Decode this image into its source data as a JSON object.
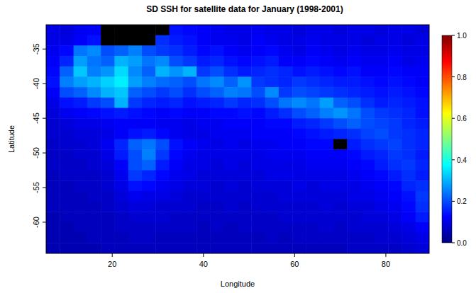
{
  "chart_data": {
    "type": "heatmap",
    "title": "SD SSH for satellite data for January (1998-2001)",
    "x_label": "Longitude",
    "y_label": "Latitude",
    "xlim": [
      5.5,
      89.5
    ],
    "ylim": [
      -64.5,
      -31.5
    ],
    "xticks": [
      20,
      40,
      60,
      80
    ],
    "yticks": [
      -60,
      -55,
      -50,
      -45,
      -40,
      -35
    ],
    "x": [
      7,
      10,
      13,
      16,
      19,
      22,
      25,
      28,
      31,
      34,
      37,
      40,
      43,
      46,
      49,
      52,
      55,
      58,
      61,
      64,
      67,
      70,
      73,
      76,
      79,
      82,
      85,
      88
    ],
    "y": [
      -32.25,
      -33.75,
      -35.25,
      -36.75,
      -38.25,
      -39.75,
      -41.25,
      -42.75,
      -44.25,
      -45.75,
      -47.25,
      -48.75,
      -50.25,
      -51.75,
      -53.25,
      -54.75,
      -56.25,
      -57.75,
      -59.25,
      -60.75,
      -62.25,
      -63.75
    ],
    "values": [
      [
        0.1,
        0.09,
        0.11,
        0.12,
        null,
        null,
        null,
        null,
        null,
        0.14,
        0.13,
        0.12,
        0.11,
        0.1,
        0.1,
        0.11,
        0.1,
        0.1,
        0.09,
        0.1,
        0.1,
        0.09,
        0.1,
        0.1,
        0.09,
        0.1,
        0.1,
        0.09
      ],
      [
        0.1,
        0.1,
        0.12,
        0.14,
        null,
        null,
        null,
        null,
        0.17,
        0.15,
        0.14,
        0.12,
        0.11,
        0.11,
        0.1,
        0.12,
        0.11,
        0.1,
        0.1,
        0.11,
        0.1,
        0.1,
        0.1,
        0.09,
        0.1,
        0.1,
        0.09,
        0.1
      ],
      [
        0.11,
        0.13,
        0.24,
        0.26,
        0.2,
        0.22,
        0.25,
        0.2,
        0.18,
        0.17,
        0.15,
        0.13,
        0.14,
        0.12,
        0.11,
        0.12,
        0.13,
        0.11,
        0.1,
        0.12,
        0.11,
        0.1,
        0.11,
        0.1,
        0.1,
        0.11,
        0.1,
        0.1
      ],
      [
        0.12,
        0.16,
        0.28,
        0.24,
        0.22,
        0.3,
        0.28,
        0.24,
        0.26,
        0.2,
        0.18,
        0.15,
        0.16,
        0.14,
        0.13,
        0.14,
        0.15,
        0.12,
        0.12,
        0.13,
        0.12,
        0.11,
        0.12,
        0.11,
        0.11,
        0.12,
        0.1,
        0.11
      ],
      [
        0.13,
        0.22,
        0.32,
        0.25,
        0.27,
        0.34,
        0.26,
        0.22,
        0.3,
        0.27,
        0.3,
        0.18,
        0.2,
        0.17,
        0.15,
        0.16,
        0.17,
        0.16,
        0.14,
        0.15,
        0.14,
        0.13,
        0.14,
        0.12,
        0.12,
        0.13,
        0.12,
        0.12
      ],
      [
        0.14,
        0.25,
        0.28,
        0.3,
        0.33,
        0.36,
        0.28,
        0.25,
        0.23,
        0.22,
        0.2,
        0.24,
        0.26,
        0.22,
        0.27,
        0.18,
        0.17,
        0.16,
        0.18,
        0.17,
        0.16,
        0.15,
        0.15,
        0.14,
        0.13,
        0.14,
        0.13,
        0.12
      ],
      [
        0.12,
        0.2,
        0.22,
        0.26,
        0.3,
        0.32,
        0.22,
        0.2,
        0.18,
        0.2,
        0.17,
        0.2,
        0.22,
        0.25,
        0.24,
        0.2,
        0.26,
        0.18,
        0.2,
        0.19,
        0.18,
        0.17,
        0.16,
        0.15,
        0.14,
        0.15,
        0.14,
        0.13
      ],
      [
        0.1,
        0.14,
        0.15,
        0.18,
        0.2,
        0.3,
        0.18,
        0.16,
        0.15,
        0.16,
        0.14,
        0.15,
        0.16,
        0.18,
        0.16,
        0.17,
        0.2,
        0.24,
        0.26,
        0.24,
        0.28,
        0.22,
        0.2,
        0.17,
        0.15,
        0.16,
        0.15,
        0.14
      ],
      [
        0.09,
        0.11,
        0.12,
        0.13,
        0.14,
        0.15,
        0.14,
        0.13,
        0.12,
        0.13,
        0.12,
        0.12,
        0.13,
        0.13,
        0.14,
        0.13,
        0.15,
        0.17,
        0.2,
        0.22,
        0.25,
        0.27,
        0.24,
        0.2,
        0.18,
        0.17,
        0.16,
        0.14
      ],
      [
        0.08,
        0.09,
        0.1,
        0.1,
        0.11,
        0.12,
        0.12,
        0.12,
        0.11,
        0.11,
        0.1,
        0.11,
        0.11,
        0.12,
        0.12,
        0.12,
        0.13,
        0.13,
        0.15,
        0.16,
        0.18,
        0.2,
        0.22,
        0.2,
        0.19,
        0.18,
        0.16,
        0.15
      ],
      [
        0.08,
        0.08,
        0.09,
        0.09,
        0.1,
        0.12,
        0.14,
        0.15,
        0.13,
        0.11,
        0.1,
        0.1,
        0.11,
        0.11,
        0.11,
        0.12,
        0.12,
        0.12,
        0.13,
        0.14,
        0.15,
        0.16,
        0.17,
        0.19,
        0.2,
        0.18,
        0.17,
        0.16
      ],
      [
        0.07,
        0.08,
        0.08,
        0.09,
        0.11,
        0.16,
        0.22,
        0.24,
        0.2,
        0.14,
        0.12,
        0.11,
        0.1,
        0.11,
        0.1,
        0.11,
        0.11,
        0.12,
        0.12,
        0.13,
        0.13,
        null,
        0.15,
        0.17,
        0.18,
        0.19,
        0.17,
        0.16
      ],
      [
        0.07,
        0.07,
        0.08,
        0.08,
        0.1,
        0.15,
        0.2,
        0.25,
        0.18,
        0.13,
        0.11,
        0.1,
        0.1,
        0.1,
        0.1,
        0.1,
        0.11,
        0.11,
        0.11,
        0.12,
        0.12,
        0.12,
        0.13,
        0.15,
        0.16,
        0.18,
        0.17,
        0.15
      ],
      [
        0.07,
        0.07,
        0.07,
        0.08,
        0.09,
        0.12,
        0.2,
        0.22,
        0.15,
        0.12,
        0.1,
        0.1,
        0.09,
        0.1,
        0.09,
        0.1,
        0.1,
        0.1,
        0.1,
        0.11,
        0.11,
        0.11,
        0.12,
        0.13,
        0.15,
        0.17,
        0.18,
        0.16
      ],
      [
        0.06,
        0.07,
        0.07,
        0.07,
        0.08,
        0.11,
        0.18,
        0.16,
        0.13,
        0.11,
        0.1,
        0.09,
        0.09,
        0.09,
        0.09,
        0.09,
        0.1,
        0.1,
        0.1,
        0.1,
        0.1,
        0.1,
        0.11,
        0.12,
        0.13,
        0.15,
        0.17,
        0.15
      ],
      [
        0.06,
        0.06,
        0.07,
        0.07,
        0.08,
        0.1,
        0.14,
        0.13,
        0.11,
        0.1,
        0.09,
        0.09,
        0.08,
        0.09,
        0.08,
        0.09,
        0.09,
        0.09,
        0.1,
        0.09,
        0.1,
        0.1,
        0.1,
        0.11,
        0.12,
        0.13,
        0.16,
        0.17
      ],
      [
        0.06,
        0.06,
        0.06,
        0.07,
        0.07,
        0.09,
        0.11,
        0.1,
        0.1,
        0.09,
        0.08,
        0.08,
        0.08,
        0.08,
        0.08,
        0.08,
        0.08,
        0.09,
        0.09,
        0.09,
        0.09,
        0.09,
        0.1,
        0.1,
        0.11,
        0.12,
        0.14,
        0.18
      ],
      [
        0.06,
        0.06,
        0.06,
        0.06,
        0.07,
        0.08,
        0.09,
        0.09,
        0.08,
        0.08,
        0.08,
        0.07,
        0.07,
        0.08,
        0.07,
        0.08,
        0.08,
        0.08,
        0.08,
        0.08,
        0.09,
        0.08,
        0.09,
        0.09,
        0.1,
        0.11,
        0.13,
        0.17
      ],
      [
        0.05,
        0.06,
        0.06,
        0.06,
        0.06,
        0.07,
        0.08,
        0.08,
        0.08,
        0.07,
        0.07,
        0.07,
        0.07,
        0.07,
        0.07,
        0.07,
        0.07,
        0.08,
        0.08,
        0.08,
        0.08,
        0.08,
        0.08,
        0.09,
        0.09,
        0.1,
        0.12,
        0.15
      ],
      [
        0.05,
        0.05,
        0.06,
        0.06,
        0.06,
        0.07,
        0.07,
        0.07,
        0.07,
        0.07,
        0.07,
        0.06,
        0.07,
        0.06,
        0.07,
        0.07,
        0.07,
        0.07,
        0.07,
        0.07,
        0.08,
        0.07,
        0.08,
        0.08,
        0.08,
        0.09,
        0.1,
        0.12
      ],
      [
        0.05,
        0.05,
        0.05,
        0.06,
        0.06,
        0.06,
        0.07,
        0.07,
        0.06,
        0.06,
        0.06,
        0.06,
        0.06,
        0.06,
        0.06,
        0.06,
        0.07,
        0.06,
        0.07,
        0.07,
        0.07,
        0.07,
        0.07,
        0.07,
        0.08,
        0.08,
        0.09,
        0.1
      ],
      [
        0.05,
        0.05,
        0.05,
        0.05,
        0.06,
        0.06,
        0.06,
        0.06,
        0.06,
        0.06,
        0.06,
        0.06,
        0.06,
        0.06,
        0.06,
        0.06,
        0.06,
        0.06,
        0.06,
        0.06,
        0.06,
        0.06,
        0.07,
        0.07,
        0.07,
        0.07,
        0.08,
        0.09
      ]
    ],
    "colorbar_lim": [
      0,
      1
    ],
    "colorbar_ticks": [
      {
        "value": 0,
        "label": "0.0"
      },
      {
        "value": 0.2,
        "label": "0.2"
      },
      {
        "value": 0.4,
        "label": "0.4"
      },
      {
        "value": 0.6,
        "label": "0.6"
      },
      {
        "value": 0.8,
        "label": "0.8"
      },
      {
        "value": 1,
        "label": "1.0"
      }
    ]
  }
}
